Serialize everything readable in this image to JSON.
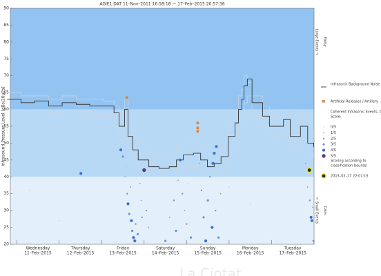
{
  "chart_data": {
    "type": "infrasound",
    "title": "AGIE1.DAT   11–Nov–2011 16:58:18   —   17–Feb–2015 20:57:36",
    "ylabel": "Infrasound Pressure Level  (dBs/20μPa)",
    "ylim": [
      20,
      90
    ],
    "yticks": [
      20,
      25,
      30,
      35,
      40,
      45,
      50,
      55,
      60,
      65,
      70,
      75,
      80,
      85,
      90
    ],
    "xlim": [
      -0.15,
      7.0
    ],
    "xticks": [
      0,
      1,
      2,
      3,
      4,
      5,
      6,
      7
    ],
    "xlabels": [
      {
        "value": 0.5,
        "day": "Wednesday",
        "date": "11–Feb–2015"
      },
      {
        "value": 1.5,
        "day": "Thursday",
        "date": "12–Feb–2015"
      },
      {
        "value": 2.5,
        "day": "Friday",
        "date": "13–Feb–2015"
      },
      {
        "value": 3.5,
        "day": "Saturday",
        "date": "14–Feb–2015"
      },
      {
        "value": 4.5,
        "day": "Sunday",
        "date": "15–Feb–2015"
      },
      {
        "value": 5.5,
        "day": "Monday",
        "date": "16–Feb–2015"
      },
      {
        "value": 6.5,
        "day": "Tuesday",
        "date": "17–Feb–2015"
      }
    ],
    "bands": [
      {
        "from": 60,
        "to": 90,
        "color": "#93c4f1"
      },
      {
        "from": 40,
        "to": 60,
        "color": "#b8d9f6"
      },
      {
        "from": 20,
        "to": 40,
        "color": "#e3f0fc"
      }
    ],
    "side_labels": [
      {
        "y": 80,
        "text": "Large Events →",
        "column": 0
      },
      {
        "y": 80,
        "text": "Noisy",
        "column": 1
      },
      {
        "y": 30,
        "text": "← Small Events",
        "column": 0
      },
      {
        "y": 30,
        "text": "Calm",
        "column": 1
      }
    ],
    "x": [
      -0.23,
      0.1,
      0.42,
      0.75,
      1.07,
      1.4,
      1.72,
      2.05,
      2.29,
      2.41,
      2.54,
      2.62,
      2.73,
      2.86,
      3.11,
      3.35,
      3.59,
      3.76,
      3.92,
      4.16,
      4.33,
      4.49,
      4.65,
      4.81,
      4.98,
      5.14,
      5.22,
      5.3,
      5.35,
      5.43,
      5.54,
      5.79,
      5.95,
      6.28,
      6.44,
      6.68,
      6.85,
      6.99
    ],
    "series": [
      {
        "color": "#c9d6e2",
        "values": [
          65,
          64,
          64,
          63,
          64,
          63,
          63,
          62.5,
          61,
          58,
          63,
          55,
          51,
          48,
          46,
          46,
          47,
          49,
          50,
          50,
          49,
          47,
          48,
          50,
          56,
          60,
          64,
          66,
          70,
          68,
          64,
          61,
          58,
          60,
          56,
          58,
          54,
          52
        ]
      },
      {
        "color": "#c9d6e2",
        "values": [
          60,
          60,
          60,
          59,
          60,
          59,
          58,
          58,
          56,
          52,
          55,
          47,
          44,
          42,
          41,
          40.5,
          41,
          42,
          43,
          43,
          42,
          41,
          41.5,
          43,
          48,
          52,
          56,
          59,
          62,
          64,
          58,
          55,
          52,
          54,
          48,
          51,
          47,
          46
        ]
      },
      {
        "name": "Infrasonic Background Noise",
        "color": "#333333",
        "values": [
          63,
          62,
          62.5,
          61,
          62,
          61.5,
          61,
          61,
          59,
          55,
          60,
          52,
          48,
          45,
          43,
          42.5,
          43,
          45,
          46.5,
          47,
          45,
          43,
          44,
          46,
          52,
          56,
          60,
          63,
          67,
          69,
          62,
          58,
          55,
          57,
          52,
          55,
          50,
          49
        ]
      }
    ],
    "artillery": {
      "name": "Artificial Releases / Artillery",
      "color": "#d9823f",
      "x": [
        2.59,
        4.26,
        4.26,
        4.26
      ],
      "y": [
        63.5,
        56,
        54.5,
        53.5
      ]
    },
    "events_title": "Coherent Infrasonic Events, by Score:",
    "scores": [
      {
        "label": "0/5",
        "r": 0.6,
        "color": "#b0b0b0"
      },
      {
        "label": "1/5",
        "r": 0.9,
        "color": "#9098b0"
      },
      {
        "label": "2/5",
        "r": 1.2,
        "color": "#7f8fb8"
      },
      {
        "label": "3/5",
        "r": 1.6,
        "color": "#6a8fd8"
      },
      {
        "label": "4/5",
        "r": 2.1,
        "color": "#3a6fd6"
      },
      {
        "label": "5/5",
        "r": 2.7,
        "color": "#5a3c78"
      }
    ],
    "events": {
      "x": [
        2.45,
        2.5,
        2.55,
        2.6,
        2.62,
        2.65,
        2.7,
        2.72,
        2.75,
        2.78,
        2.8,
        2.85,
        2.9,
        2.93,
        2.95,
        3.0,
        3.05,
        3.1,
        2.68,
        2.58,
        1.51,
        0.3,
        1.0,
        3.5,
        3.6,
        3.7,
        3.75,
        3.8,
        3.85,
        3.9,
        3.95,
        4.0,
        4.05,
        4.1,
        4.3,
        4.35,
        4.4,
        4.45,
        4.5,
        4.55,
        4.6,
        4.62,
        4.65,
        4.7,
        4.68,
        4.75,
        4.8,
        5.0,
        5.5,
        6.85,
        6.9,
        6.93,
        6.95,
        6.97,
        6.8,
        6.98
      ],
      "y": [
        48,
        46,
        40,
        35,
        32,
        29,
        27,
        24,
        22,
        21,
        26,
        23,
        38,
        33,
        28,
        42,
        30,
        25,
        37,
        43,
        41,
        36,
        27,
        21,
        28,
        33,
        24,
        39,
        45,
        35,
        30,
        26,
        38,
        22,
        44,
        36,
        28,
        21,
        33,
        40,
        25,
        44,
        47,
        49,
        30,
        22,
        35,
        37,
        32,
        37,
        33,
        28,
        27,
        31,
        44,
        21
      ],
      "score": [
        4,
        3,
        1,
        2,
        4,
        3,
        4,
        3,
        4,
        4,
        2,
        3,
        1,
        1,
        2,
        5,
        2,
        1,
        1,
        0,
        4,
        0,
        0,
        3,
        1,
        2,
        3,
        1,
        4,
        2,
        1,
        2,
        0,
        3,
        1,
        2,
        3,
        4,
        3,
        2,
        4,
        4,
        4,
        4,
        2,
        3,
        1,
        0,
        0,
        1,
        2,
        4,
        4,
        1,
        1,
        2
      ]
    },
    "scoring_note": "Scoring according to classification bounds",
    "highlight": {
      "x": 6.89,
      "y": 42,
      "label": "2015–02–17 22:01:15"
    },
    "watermark": "La Ciotat"
  }
}
